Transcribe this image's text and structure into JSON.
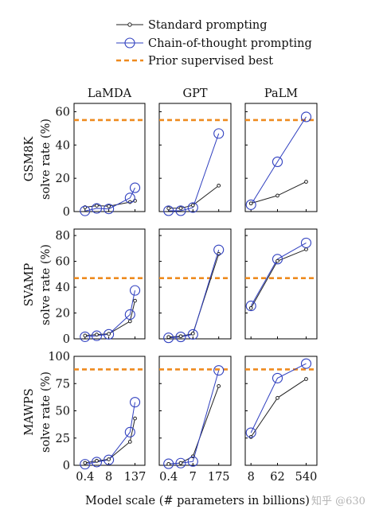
{
  "legend": {
    "standard_label": "Standard prompting",
    "cot_label": "Chain-of-thought prompting",
    "prior_label": "Prior supervised best",
    "colors": {
      "standard": "#222222",
      "cot": "#2f3fbf",
      "prior": "#ee8a1e"
    }
  },
  "column_titles": [
    "LaMDA",
    "GPT",
    "PaLM"
  ],
  "row_titles": [
    "GSM8K",
    "SVAMP",
    "MAWPS"
  ],
  "ylabel": "solve rate (%)",
  "xlabel": "Model scale (# parameters in billions)",
  "watermark": "知乎 @630",
  "chart_data": [
    {
      "type": "line",
      "dataset": "GSM8K",
      "model": "LaMDA",
      "ylim": [
        0,
        65
      ],
      "yticks": [
        0,
        20,
        40,
        60
      ],
      "categories": [
        "0.4",
        "2",
        "8",
        "68",
        "137"
      ],
      "xtick_labels": [
        "0.4",
        "8",
        "137"
      ],
      "prior_best": 55,
      "series": [
        {
          "name": "Standard prompting",
          "values": [
            2.6,
            3.6,
            3.2,
            5.7,
            6.5
          ]
        },
        {
          "name": "Chain-of-thought prompting",
          "values": [
            0.4,
            1.9,
            1.6,
            8.2,
            14.3
          ]
        }
      ]
    },
    {
      "type": "line",
      "dataset": "GSM8K",
      "model": "GPT",
      "ylim": [
        0,
        65
      ],
      "yticks": [
        0,
        20,
        40,
        60
      ],
      "categories": [
        "0.4",
        "1.3",
        "7",
        "175"
      ],
      "xtick_labels": [
        "0.4",
        "7",
        "175"
      ],
      "prior_best": 55,
      "series": [
        {
          "name": "Standard prompting",
          "values": [
            2.0,
            2.0,
            3.8,
            15.6
          ]
        },
        {
          "name": "Chain-of-thought prompting",
          "values": [
            0.5,
            0.5,
            2.4,
            46.9
          ]
        }
      ]
    },
    {
      "type": "line",
      "dataset": "GSM8K",
      "model": "PaLM",
      "ylim": [
        0,
        65
      ],
      "yticks": [
        0,
        20,
        40,
        60
      ],
      "categories": [
        "8",
        "62",
        "540"
      ],
      "xtick_labels": [
        "8",
        "62",
        "540"
      ],
      "prior_best": 55,
      "series": [
        {
          "name": "Standard prompting",
          "values": [
            4.9,
            9.6,
            17.9
          ]
        },
        {
          "name": "Chain-of-thought prompting",
          "values": [
            4.1,
            29.9,
            56.9
          ]
        }
      ]
    },
    {
      "type": "line",
      "dataset": "SVAMP",
      "model": "LaMDA",
      "ylim": [
        0,
        85
      ],
      "yticks": [
        0,
        20,
        40,
        60,
        80
      ],
      "categories": [
        "0.4",
        "2",
        "8",
        "68",
        "137"
      ],
      "xtick_labels": [
        "0.4",
        "8",
        "137"
      ],
      "prior_best": 47,
      "series": [
        {
          "name": "Standard prompting",
          "values": [
            2.5,
            3.3,
            3.8,
            13.6,
            29.5
          ]
        },
        {
          "name": "Chain-of-thought prompting",
          "values": [
            1.6,
            2.4,
            3.5,
            18.8,
            37.5
          ]
        }
      ]
    },
    {
      "type": "line",
      "dataset": "SVAMP",
      "model": "GPT",
      "ylim": [
        0,
        85
      ],
      "yticks": [
        0,
        20,
        40,
        60,
        80
      ],
      "categories": [
        "0.4",
        "1.3",
        "7",
        "175"
      ],
      "xtick_labels": [
        "0.4",
        "7",
        "175"
      ],
      "prior_best": 47,
      "series": [
        {
          "name": "Standard prompting",
          "values": [
            1.4,
            2.0,
            4.1,
            65.7
          ]
        },
        {
          "name": "Chain-of-thought prompting",
          "values": [
            0.8,
            1.5,
            3.4,
            68.9
          ]
        }
      ]
    },
    {
      "type": "line",
      "dataset": "SVAMP",
      "model": "PaLM",
      "ylim": [
        0,
        85
      ],
      "yticks": [
        0,
        20,
        40,
        60,
        80
      ],
      "categories": [
        "8",
        "62",
        "540"
      ],
      "xtick_labels": [
        "8",
        "62",
        "540"
      ],
      "prior_best": 47,
      "series": [
        {
          "name": "Standard prompting",
          "values": [
            23.8,
            60.3,
            69.3
          ]
        },
        {
          "name": "Chain-of-thought prompting",
          "values": [
            25.5,
            61.7,
            74.3
          ]
        }
      ]
    },
    {
      "type": "line",
      "dataset": "MAWPS",
      "model": "LaMDA",
      "ylim": [
        0,
        100
      ],
      "yticks": [
        0,
        25,
        50,
        75,
        100
      ],
      "categories": [
        "0.4",
        "2",
        "8",
        "68",
        "137"
      ],
      "xtick_labels": [
        "0.4",
        "8",
        "137"
      ],
      "prior_best": 88,
      "series": [
        {
          "name": "Standard prompting",
          "values": [
            2.2,
            4.1,
            5.5,
            21.6,
            43.0
          ]
        },
        {
          "name": "Chain-of-thought prompting",
          "values": [
            1.0,
            3.0,
            5.0,
            30.4,
            57.9
          ]
        }
      ]
    },
    {
      "type": "line",
      "dataset": "MAWPS",
      "model": "GPT",
      "ylim": [
        0,
        100
      ],
      "yticks": [
        0,
        25,
        50,
        75,
        100
      ],
      "categories": [
        "0.4",
        "1.3",
        "7",
        "175"
      ],
      "xtick_labels": [
        "0.4",
        "7",
        "175"
      ],
      "prior_best": 88,
      "series": [
        {
          "name": "Standard prompting",
          "values": [
            1.2,
            2.1,
            8.2,
            72.7
          ]
        },
        {
          "name": "Chain-of-thought prompting",
          "values": [
            1.4,
            2.0,
            3.5,
            87.1
          ]
        }
      ]
    },
    {
      "type": "line",
      "dataset": "MAWPS",
      "model": "PaLM",
      "ylim": [
        0,
        100
      ],
      "yticks": [
        0,
        25,
        50,
        75,
        100
      ],
      "categories": [
        "8",
        "62",
        "540"
      ],
      "xtick_labels": [
        "8",
        "62",
        "540"
      ],
      "prior_best": 88,
      "series": [
        {
          "name": "Standard prompting",
          "values": [
            26.0,
            61.8,
            79.2
          ]
        },
        {
          "name": "Chain-of-thought prompting",
          "values": [
            29.9,
            80.0,
            93.3
          ]
        }
      ]
    }
  ]
}
